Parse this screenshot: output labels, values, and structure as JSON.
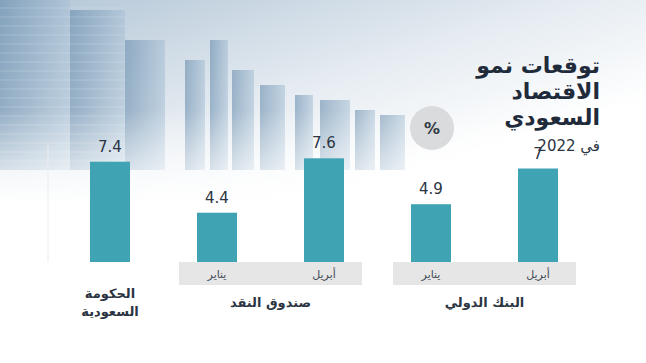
{
  "chart_data": {
    "type": "bar",
    "title": "توقعات نمو الاقتصاد السعودي",
    "subtitle": "في 2022",
    "unit_label": "%",
    "categories": [
      null,
      "يناير",
      "أبريل",
      "يناير",
      "أبريل"
    ],
    "values": [
      7.4,
      4.4,
      7.6,
      4.9,
      7
    ],
    "groups": [
      {
        "name": "الحكومة السعودية",
        "size": 1
      },
      {
        "name": "صندوق النقد",
        "size": 2
      },
      {
        "name": "البنك الدولي",
        "size": 2
      }
    ],
    "color": "#3fa3b4",
    "ylim": [
      1.5,
      8.5
    ],
    "data_labels": true,
    "tick_labels": false,
    "grid": false
  }
}
